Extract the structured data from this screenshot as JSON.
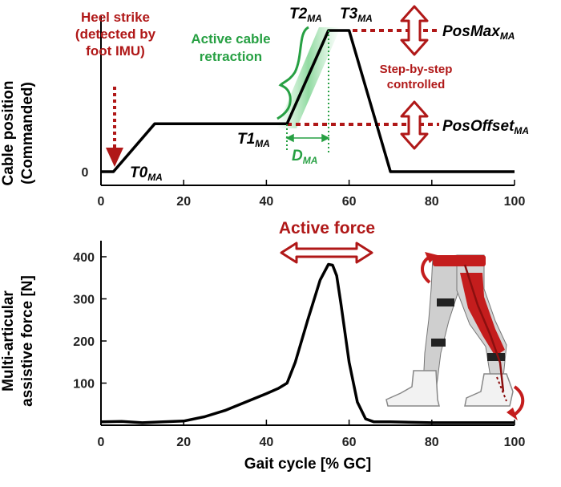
{
  "chart_data": [
    {
      "type": "line",
      "xlim": [
        0,
        100
      ],
      "ylim": [
        0,
        1
      ],
      "x_ticks": [
        "0",
        "20",
        "40",
        "60",
        "80",
        "100"
      ],
      "y_ticks": [
        "0"
      ],
      "ylabel_line1": "Cable position",
      "ylabel_line2": "(Commanded)",
      "series": [
        {
          "x": [
            0,
            3,
            13,
            45,
            55,
            60,
            70,
            100
          ],
          "y": [
            0,
            0,
            0.34,
            0.34,
            1,
            1,
            0,
            0
          ]
        }
      ],
      "annotations": {
        "heel_strike": [
          "Heel strike",
          "(detected by",
          "foot IMU)"
        ],
        "active_retraction": [
          "Active cable",
          "retraction"
        ],
        "t0": {
          "main": "T0",
          "sub": "MA"
        },
        "t1": {
          "main": "T1",
          "sub": "MA"
        },
        "t2": {
          "main": "T2",
          "sub": "MA"
        },
        "t3": {
          "main": "T3",
          "sub": "MA"
        },
        "d": {
          "main": "D",
          "sub": "MA"
        },
        "pos_max": {
          "main": "PosMax",
          "sub": "MA"
        },
        "pos_offset": {
          "main": "PosOffset",
          "sub": "MA"
        },
        "step_control": [
          "Step-by-step",
          "controlled"
        ]
      }
    },
    {
      "type": "line",
      "xlim": [
        0,
        100
      ],
      "ylim": [
        0,
        400
      ],
      "x_ticks": [
        "0",
        "20",
        "40",
        "60",
        "80",
        "100"
      ],
      "y_ticks": [
        "100",
        "200",
        "300",
        "400"
      ],
      "y_tick_values": [
        100,
        200,
        300,
        400
      ],
      "ylabel_line1": "Multi-articular",
      "ylabel_line2": "assistive force [N]",
      "xlabel": "Gait cycle [% GC]",
      "title": "Active force",
      "series": [
        {
          "x": [
            0,
            5,
            10,
            15,
            20,
            25,
            30,
            35,
            40,
            43,
            45,
            47,
            50,
            53,
            55,
            56,
            57,
            58,
            60,
            62,
            64,
            66,
            70,
            80,
            100
          ],
          "y": [
            8,
            9,
            6,
            8,
            10,
            20,
            35,
            55,
            75,
            88,
            100,
            150,
            250,
            345,
            382,
            380,
            355,
            290,
            150,
            55,
            15,
            8,
            8,
            6,
            6
          ]
        }
      ]
    }
  ]
}
